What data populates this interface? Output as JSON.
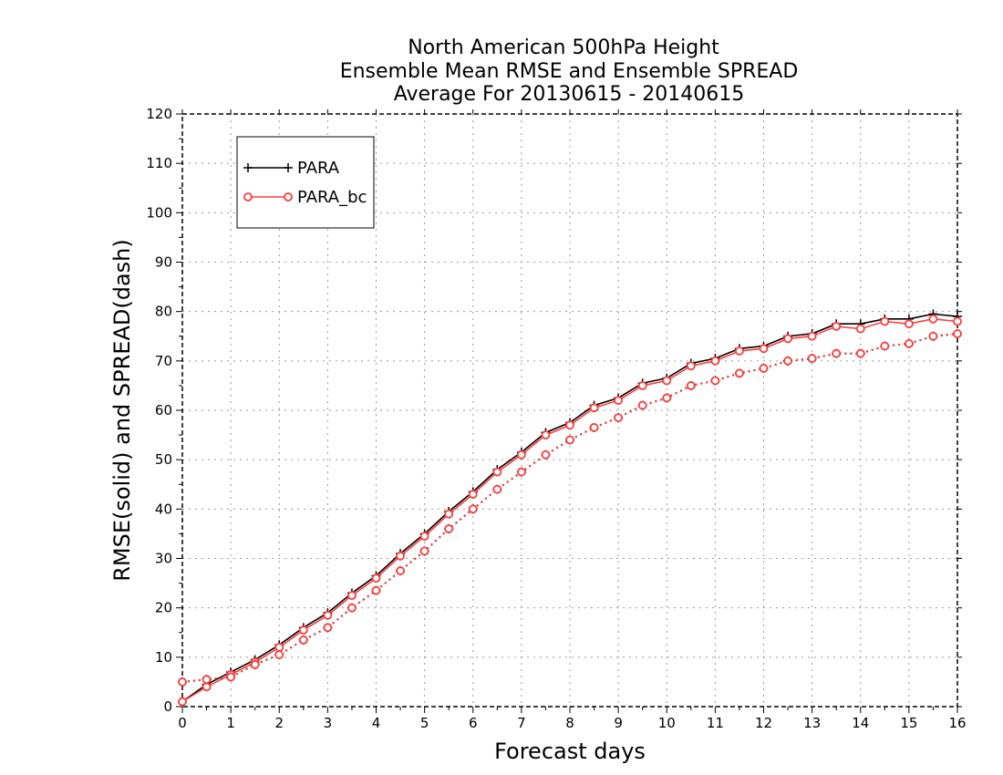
{
  "chart_data": {
    "type": "line",
    "title": [
      "North American 500hPa Height",
      "Ensemble Mean RMSE and Ensemble SPREAD",
      "Average For 20130615 - 20140615"
    ],
    "xlabel": "Forecast days",
    "ylabel": "RMSE(solid) and SPREAD(dash)",
    "xlim": [
      0,
      16
    ],
    "ylim": [
      0,
      120
    ],
    "xticks": [
      0,
      1,
      2,
      3,
      4,
      5,
      6,
      7,
      8,
      9,
      10,
      11,
      12,
      13,
      14,
      15,
      16
    ],
    "yticks": [
      0,
      10,
      20,
      30,
      40,
      50,
      60,
      70,
      80,
      90,
      100,
      110,
      120
    ],
    "grid": true,
    "legend_position": "top-left",
    "x": [
      0,
      0.5,
      1,
      1.5,
      2,
      2.5,
      3,
      3.5,
      4,
      4.5,
      5,
      5.5,
      6,
      6.5,
      7,
      7.5,
      8,
      8.5,
      9,
      9.5,
      10,
      10.5,
      11,
      11.5,
      12,
      12.5,
      13,
      13.5,
      14,
      14.5,
      15,
      15.5,
      16
    ],
    "series": [
      {
        "name": "PARA",
        "metric": "RMSE",
        "style": "solid",
        "marker": "plus",
        "color": "#000000",
        "values": [
          1.0,
          4.5,
          7.0,
          9.5,
          12.5,
          16.0,
          19.0,
          23.0,
          26.5,
          31.0,
          35.0,
          39.5,
          43.5,
          48.0,
          51.5,
          55.5,
          57.5,
          61.0,
          62.5,
          65.5,
          66.5,
          69.5,
          70.5,
          72.5,
          73.0,
          75.0,
          75.5,
          77.5,
          77.5,
          78.5,
          78.5,
          79.5,
          79.0
        ]
      },
      {
        "name": "PARA_bc",
        "metric": "RMSE",
        "style": "solid",
        "marker": "circle",
        "color": "#ff3b3b",
        "values": [
          1.0,
          4.0,
          6.5,
          9.0,
          12.0,
          15.5,
          18.5,
          22.5,
          26.0,
          30.5,
          34.5,
          39.0,
          43.0,
          47.5,
          51.0,
          55.0,
          57.0,
          60.5,
          62.0,
          65.0,
          66.0,
          69.0,
          70.0,
          72.0,
          72.5,
          74.5,
          75.0,
          77.0,
          76.5,
          78.0,
          77.5,
          78.5,
          78.0
        ]
      },
      {
        "name": "PARA",
        "metric": "SPREAD",
        "style": "dotted",
        "marker": "plus",
        "color": "#000000",
        "values": [
          5.0,
          5.5,
          6.0,
          8.5,
          10.5,
          13.5,
          16.0,
          20.0,
          23.5,
          27.5,
          31.5,
          36.0,
          40.0,
          44.0,
          47.5,
          51.0,
          54.0,
          56.5,
          58.5,
          61.0,
          62.5,
          65.0,
          66.0,
          67.5,
          68.5,
          70.0,
          70.5,
          71.5,
          71.5,
          73.0,
          73.5,
          75.0,
          75.5
        ]
      },
      {
        "name": "PARA_bc",
        "metric": "SPREAD",
        "style": "dotted",
        "marker": "circle",
        "color": "#ff3b3b",
        "values": [
          5.0,
          5.5,
          6.0,
          8.5,
          10.5,
          13.5,
          16.0,
          20.0,
          23.5,
          27.5,
          31.5,
          36.0,
          40.0,
          44.0,
          47.5,
          51.0,
          54.0,
          56.5,
          58.5,
          61.0,
          62.5,
          65.0,
          66.0,
          67.5,
          68.5,
          70.0,
          70.5,
          71.5,
          71.5,
          73.0,
          73.5,
          75.0,
          75.5
        ]
      }
    ],
    "legend": [
      {
        "label": "PARA",
        "marker": "plus",
        "color": "#000000"
      },
      {
        "label": "PARA_bc",
        "marker": "circle",
        "color": "#ff3b3b"
      }
    ]
  }
}
